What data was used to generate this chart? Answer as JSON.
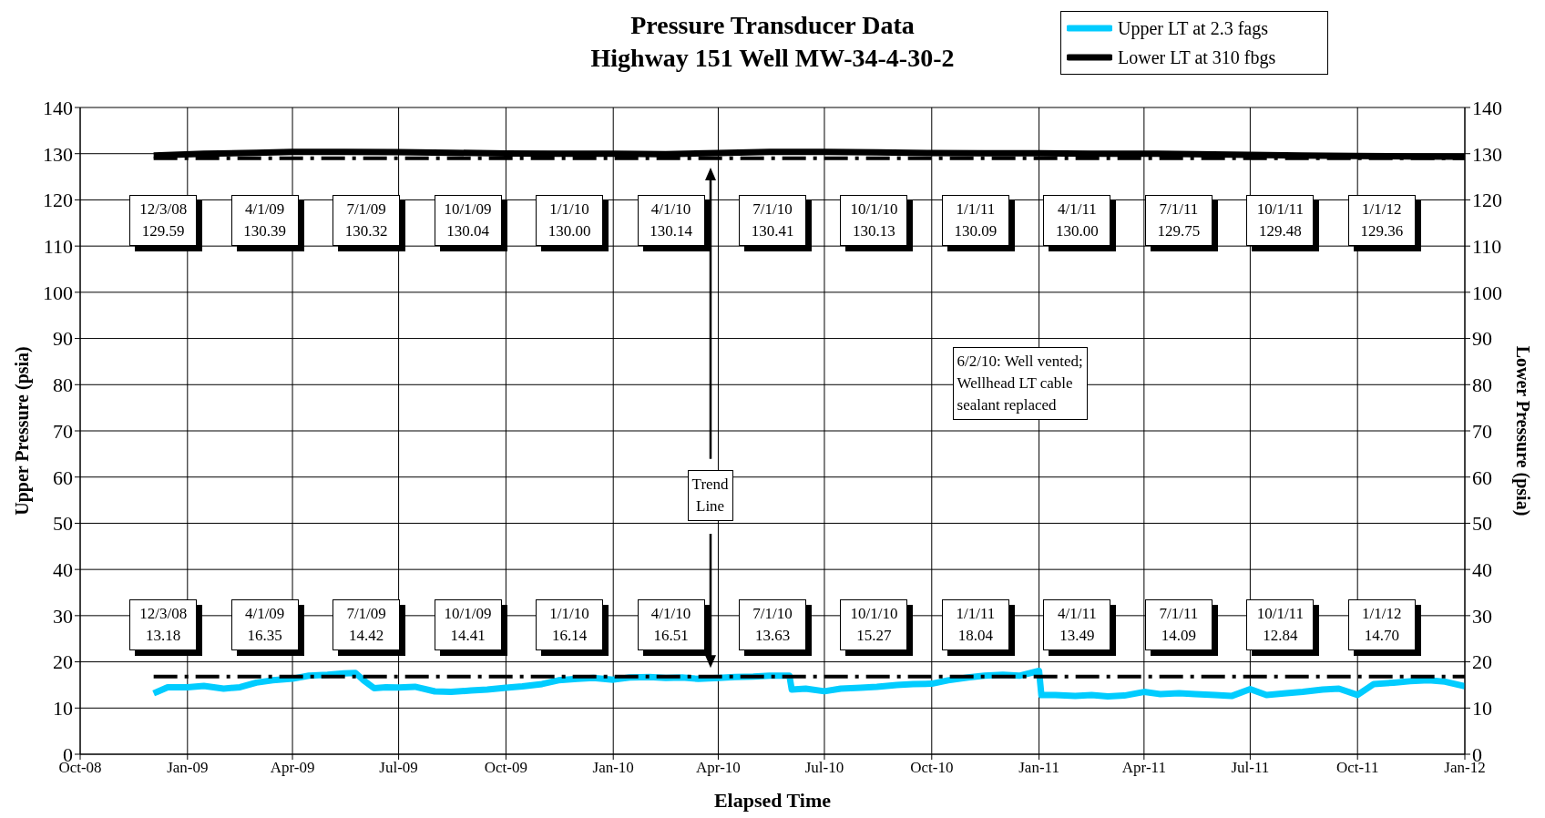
{
  "chart_data": {
    "type": "line",
    "title": "Pressure Transducer Data",
    "subtitle": "Highway 151 Well MW-34-4-30-2",
    "xlabel": "Elapsed Time",
    "ylabel": "Upper Pressure (psia)",
    "y2label": "Lower Pressure (psia)",
    "xlim": [
      "2008-10-01",
      "2012-01-01"
    ],
    "xticks": [
      {
        "value": "2008-10-01",
        "label": "Oct-08"
      },
      {
        "value": "2009-01-01",
        "label": "Jan-09"
      },
      {
        "value": "2009-04-01",
        "label": "Apr-09"
      },
      {
        "value": "2009-07-01",
        "label": "Jul-09"
      },
      {
        "value": "2009-10-01",
        "label": "Oct-09"
      },
      {
        "value": "2010-01-01",
        "label": "Jan-10"
      },
      {
        "value": "2010-04-01",
        "label": "Apr-10"
      },
      {
        "value": "2010-07-01",
        "label": "Jul-10"
      },
      {
        "value": "2010-10-01",
        "label": "Oct-10"
      },
      {
        "value": "2011-01-01",
        "label": "Jan-11"
      },
      {
        "value": "2011-04-01",
        "label": "Apr-11"
      },
      {
        "value": "2011-07-01",
        "label": "Jul-11"
      },
      {
        "value": "2011-10-01",
        "label": "Oct-11"
      },
      {
        "value": "2012-01-01",
        "label": "Jan-12"
      }
    ],
    "ylim": [
      0,
      140
    ],
    "yticks": [
      0,
      10,
      20,
      30,
      40,
      50,
      60,
      70,
      80,
      90,
      100,
      110,
      120,
      130,
      140
    ],
    "y2lim": [
      0,
      140
    ],
    "y2ticks": [
      0,
      10,
      20,
      30,
      40,
      50,
      60,
      70,
      80,
      90,
      100,
      110,
      120,
      130,
      140
    ],
    "grid": true,
    "legend": "top right",
    "marker": "none",
    "series": [
      {
        "name": "Upper LT at 2.3 fags",
        "color": "#00ccff",
        "x": [
          "2008-12-03",
          "2008-12-15",
          "2009-01-01",
          "2009-01-15",
          "2009-02-01",
          "2009-02-15",
          "2009-03-01",
          "2009-03-15",
          "2009-04-01",
          "2009-04-15",
          "2009-05-01",
          "2009-05-15",
          "2009-05-25",
          "2009-06-01",
          "2009-06-10",
          "2009-06-20",
          "2009-07-01",
          "2009-07-15",
          "2009-08-01",
          "2009-08-15",
          "2009-09-01",
          "2009-09-15",
          "2009-10-01",
          "2009-10-15",
          "2009-11-01",
          "2009-11-15",
          "2009-12-01",
          "2009-12-15",
          "2010-01-01",
          "2010-01-15",
          "2010-02-01",
          "2010-02-15",
          "2010-03-01",
          "2010-03-15",
          "2010-04-01",
          "2010-04-15",
          "2010-05-01",
          "2010-05-15",
          "2010-06-01",
          "2010-06-03",
          "2010-06-15",
          "2010-07-01",
          "2010-07-15",
          "2010-08-01",
          "2010-08-15",
          "2010-09-01",
          "2010-09-15",
          "2010-10-01",
          "2010-10-15",
          "2010-11-01",
          "2010-11-15",
          "2010-12-01",
          "2010-12-15",
          "2011-01-01",
          "2011-01-03",
          "2011-01-15",
          "2011-02-01",
          "2011-02-15",
          "2011-03-01",
          "2011-03-15",
          "2011-04-01",
          "2011-04-15",
          "2011-05-01",
          "2011-05-15",
          "2011-06-01",
          "2011-06-15",
          "2011-07-01",
          "2011-07-15",
          "2011-08-01",
          "2011-08-15",
          "2011-09-01",
          "2011-09-15",
          "2011-10-01",
          "2011-10-15",
          "2011-11-01",
          "2011-11-15",
          "2011-12-01",
          "2011-12-15",
          "2012-01-01"
        ],
        "values": [
          13.18,
          14.5,
          14.5,
          14.8,
          14.2,
          14.5,
          15.5,
          16.0,
          16.35,
          17.0,
          17.2,
          17.5,
          17.6,
          16.0,
          14.3,
          14.5,
          14.42,
          14.6,
          13.6,
          13.5,
          13.8,
          14.0,
          14.41,
          14.7,
          15.2,
          16.0,
          16.3,
          16.5,
          16.14,
          16.6,
          16.7,
          16.5,
          16.6,
          16.3,
          16.51,
          16.7,
          16.8,
          17.0,
          17.0,
          14.0,
          14.2,
          13.63,
          14.2,
          14.4,
          14.6,
          15.0,
          15.2,
          15.27,
          16.0,
          16.6,
          17.0,
          17.2,
          17.0,
          18.04,
          12.8,
          12.8,
          12.6,
          12.8,
          12.5,
          12.7,
          13.49,
          13.0,
          13.2,
          13.0,
          12.8,
          12.6,
          14.09,
          12.8,
          13.2,
          13.5,
          14.0,
          14.2,
          12.84,
          15.2,
          15.5,
          15.8,
          16.0,
          15.7,
          14.7
        ]
      },
      {
        "name": "Lower LT at 310 fbgs",
        "color": "#000000",
        "axis": "y2",
        "x": [
          "2008-12-03",
          "2009-01-15",
          "2009-03-01",
          "2009-04-01",
          "2009-05-15",
          "2009-07-01",
          "2009-08-15",
          "2009-10-01",
          "2009-11-15",
          "2010-01-01",
          "2010-02-15",
          "2010-04-01",
          "2010-05-15",
          "2010-07-01",
          "2010-08-15",
          "2010-10-01",
          "2010-11-15",
          "2011-01-01",
          "2011-02-15",
          "2011-04-01",
          "2011-05-15",
          "2011-07-01",
          "2011-08-15",
          "2011-10-01",
          "2011-11-15",
          "2012-01-01"
        ],
        "values": [
          129.59,
          130.0,
          130.2,
          130.39,
          130.4,
          130.32,
          130.2,
          130.04,
          130.0,
          130.0,
          129.9,
          130.14,
          130.4,
          130.41,
          130.3,
          130.13,
          130.1,
          130.09,
          130.0,
          130.0,
          129.9,
          129.75,
          129.6,
          129.48,
          129.4,
          129.36
        ]
      },
      {
        "type": "line",
        "color": "#000000",
        "line_style": "dashed",
        "x": [
          "2008-12-03",
          "2012-01-01"
        ],
        "values": [
          16.8,
          16.8
        ]
      },
      {
        "type": "line",
        "color": "#000000",
        "line_style": "dashed",
        "axis": "y2",
        "x": [
          "2008-12-03",
          "2012-01-01"
        ],
        "values": [
          129.0,
          129.0
        ]
      }
    ],
    "annotations": [
      "12/3/08\n129.59",
      "4/1/09\n130.39",
      "7/1/09\n130.32",
      "10/1/09\n130.04",
      "1/1/10\n130.00",
      "4/1/10\n130.14",
      "7/1/10\n130.41",
      "10/1/10\n130.13",
      "1/1/11\n130.09",
      "4/1/11\n130.00",
      "7/1/11\n129.75",
      "10/1/11\n129.48",
      "1/1/12\n129.36",
      "12/3/08\n13.18",
      "4/1/09\n16.35",
      "7/1/09\n14.42",
      "10/1/09\n14.41",
      "1/1/10\n16.14",
      "4/1/10\n16.51",
      "7/1/10\n13.63",
      "10/1/10\n15.27",
      "1/1/11\n18.04",
      "4/1/11\n13.49",
      "7/1/11\n14.09",
      "10/1/11\n12.84",
      "1/1/12\n14.70",
      "Trend\nLine",
      "6/2/10: Well vented;\nWellhead LT cable\nsealant replaced"
    ]
  }
}
